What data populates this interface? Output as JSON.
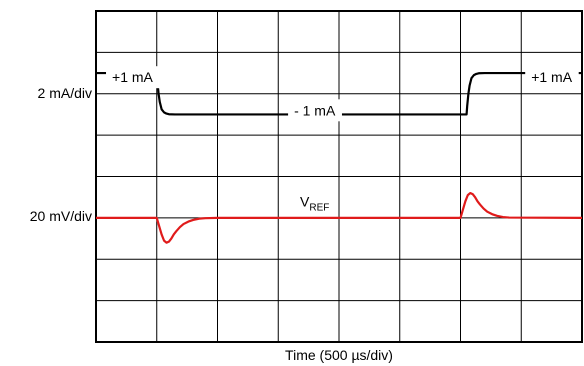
{
  "chart_data": {
    "type": "line",
    "title": "",
    "xlabel": "Time (500 µs/div)",
    "divisions": {
      "x": 8,
      "y": 8
    },
    "xlim_div": [
      0,
      8
    ],
    "ylim_div": [
      0,
      8
    ],
    "grid": true,
    "channels": [
      {
        "name": "current",
        "scale_label": "2 mA/div",
        "color": "#000000",
        "units": "mA",
        "baseline_div": 6
      },
      {
        "name": "V_REF",
        "scale_label": "20 mV/div",
        "color": "#e01b1b",
        "units": "mV",
        "baseline_div": 3
      }
    ],
    "series": [
      {
        "channel": 0,
        "x_us": [
          0,
          500,
          505,
          515,
          525,
          540,
          560,
          580,
          600,
          650,
          700,
          800,
          1000,
          2000,
          3000,
          3050,
          3055,
          3065,
          3075,
          3090,
          3110,
          3130,
          3150,
          3200,
          3250,
          3300,
          3500,
          4000
        ],
        "y_mA": [
          1,
          1,
          0.6,
          0.0,
          -0.4,
          -0.75,
          -0.9,
          -0.96,
          -0.99,
          -1,
          -1,
          -1,
          -1,
          -1,
          -1,
          -1,
          -0.6,
          0.0,
          0.4,
          0.75,
          0.9,
          0.96,
          0.99,
          1,
          1,
          1,
          1,
          1
        ]
      },
      {
        "channel": 1,
        "x_us": [
          0,
          500,
          520,
          540,
          560,
          580,
          600,
          620,
          640,
          660,
          690,
          720,
          760,
          800,
          850,
          900,
          1000,
          2000,
          3000,
          3020,
          3040,
          3060,
          3080,
          3100,
          3120,
          3140,
          3160,
          3190,
          3220,
          3260,
          3300,
          3350,
          3400,
          4000
        ],
        "y_mV": [
          0,
          0,
          -4,
          -8,
          -11,
          -12,
          -11.5,
          -10,
          -8,
          -6.5,
          -4.5,
          -3,
          -1.8,
          -1,
          -0.4,
          -0.15,
          0,
          0,
          0,
          4,
          8,
          11,
          12,
          11.5,
          10,
          8,
          6.5,
          4.5,
          3,
          1.8,
          1,
          0.4,
          0.15,
          0
        ]
      }
    ],
    "annotations": [
      {
        "text": "+1 mA",
        "x_div": 0.6,
        "y_div": 6.4
      },
      {
        "text": "- 1 mA",
        "x_div": 3.6,
        "y_div": 5.6
      },
      {
        "text": "+1 mA",
        "x_div": 7.5,
        "y_div": 6.4
      },
      {
        "text": "V",
        "sub": "REF",
        "x_div": 3.6,
        "y_div": 3.4
      }
    ]
  }
}
